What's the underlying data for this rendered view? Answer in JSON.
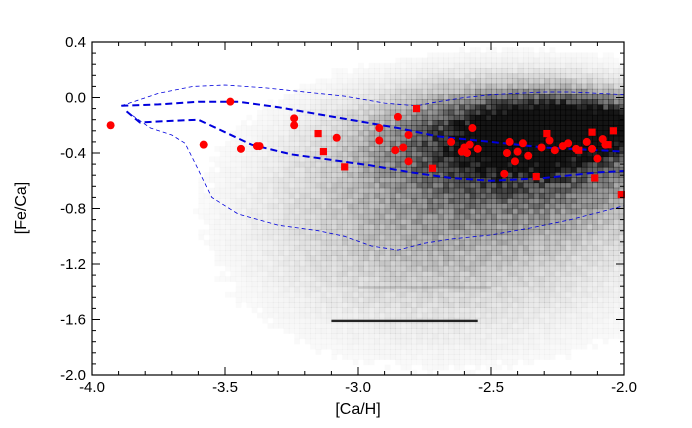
{
  "chart_data": {
    "type": "scatter",
    "title": "",
    "xlabel": "[Ca/H]",
    "ylabel": "[Fe/Ca]",
    "xlim": [
      -4.0,
      -2.0
    ],
    "ylim": [
      -2.0,
      0.4
    ],
    "x_ticks": [
      -4.0,
      -3.5,
      -3.0,
      -2.5,
      -2.0
    ],
    "x_tick_labels": [
      "-4.0",
      "-3.5",
      "-3.0",
      "-2.5",
      "-2.0"
    ],
    "y_ticks": [
      -2.0,
      -1.6,
      -1.2,
      -0.8,
      -0.4,
      0.0,
      0.4
    ],
    "y_tick_labels": [
      "-2.0",
      "-1.6",
      "-1.2",
      "-0.8",
      "-0.4",
      "0.0",
      "0.4"
    ],
    "grid": false,
    "colors": {
      "points": "#ff0000",
      "contours": "#0000dd",
      "density": "#000000",
      "axes": "#000000"
    },
    "series": [
      {
        "marker": "circle",
        "color": "#ff0000",
        "points": [
          [
            -3.93,
            -0.2
          ],
          [
            -3.58,
            -0.34
          ],
          [
            -3.48,
            -0.03
          ],
          [
            -3.44,
            -0.37
          ],
          [
            -3.38,
            -0.35
          ],
          [
            -3.37,
            -0.35
          ],
          [
            -3.24,
            -0.15
          ],
          [
            -3.24,
            -0.2
          ],
          [
            -3.08,
            -0.29
          ],
          [
            -2.92,
            -0.22
          ],
          [
            -2.92,
            -0.31
          ],
          [
            -2.86,
            -0.38
          ],
          [
            -2.85,
            -0.14
          ],
          [
            -2.83,
            -0.36
          ],
          [
            -2.81,
            -0.27
          ],
          [
            -2.81,
            -0.46
          ],
          [
            -2.65,
            -0.32
          ],
          [
            -2.61,
            -0.39
          ],
          [
            -2.6,
            -0.36
          ],
          [
            -2.59,
            -0.4
          ],
          [
            -2.58,
            -0.34
          ],
          [
            -2.57,
            -0.22
          ],
          [
            -2.55,
            -0.37
          ],
          [
            -2.45,
            -0.55
          ],
          [
            -2.44,
            -0.4
          ],
          [
            -2.43,
            -0.32
          ],
          [
            -2.41,
            -0.46
          ],
          [
            -2.4,
            -0.39
          ],
          [
            -2.38,
            -0.33
          ],
          [
            -2.36,
            -0.42
          ],
          [
            -2.31,
            -0.36
          ],
          [
            -2.28,
            -0.31
          ],
          [
            -2.26,
            -0.38
          ],
          [
            -2.23,
            -0.35
          ],
          [
            -2.21,
            -0.33
          ],
          [
            -2.18,
            -0.37
          ],
          [
            -2.14,
            -0.32
          ],
          [
            -2.12,
            -0.37
          ],
          [
            -2.1,
            -0.44
          ],
          [
            -2.08,
            -0.3
          ],
          [
            -2.07,
            -0.34
          ]
        ]
      },
      {
        "marker": "square",
        "color": "#ff0000",
        "points": [
          [
            -3.15,
            -0.26
          ],
          [
            -3.13,
            -0.39
          ],
          [
            -3.05,
            -0.5
          ],
          [
            -2.78,
            -0.08
          ],
          [
            -2.72,
            -0.51
          ],
          [
            -2.33,
            -0.57
          ],
          [
            -2.29,
            -0.26
          ],
          [
            -2.17,
            -0.38
          ],
          [
            -2.12,
            -0.25
          ],
          [
            -2.11,
            -0.58
          ],
          [
            -2.06,
            -0.34
          ],
          [
            -2.04,
            -0.24
          ],
          [
            -2.01,
            -0.7
          ]
        ]
      }
    ],
    "lines": [
      {
        "style": "dashed-thick",
        "color": "#0000dd",
        "points": [
          [
            -3.89,
            -0.06
          ],
          [
            -3.75,
            -0.05
          ],
          [
            -3.6,
            -0.03
          ],
          [
            -3.45,
            -0.03
          ],
          [
            -3.3,
            -0.07
          ],
          [
            -3.15,
            -0.12
          ],
          [
            -3.0,
            -0.17
          ],
          [
            -2.85,
            -0.22
          ],
          [
            -2.7,
            -0.28
          ],
          [
            -2.5,
            -0.32
          ],
          [
            -2.3,
            -0.36
          ],
          [
            -2.1,
            -0.38
          ],
          [
            -2.0,
            -0.39
          ]
        ]
      },
      {
        "style": "dashed-thick",
        "color": "#0000dd",
        "points": [
          [
            -3.87,
            -0.1
          ],
          [
            -3.82,
            -0.18
          ],
          [
            -3.72,
            -0.17
          ],
          [
            -3.6,
            -0.16
          ],
          [
            -3.5,
            -0.25
          ],
          [
            -3.4,
            -0.34
          ],
          [
            -3.25,
            -0.41
          ],
          [
            -3.1,
            -0.45
          ],
          [
            -2.95,
            -0.49
          ],
          [
            -2.8,
            -0.54
          ],
          [
            -2.65,
            -0.58
          ],
          [
            -2.5,
            -0.6
          ],
          [
            -2.3,
            -0.58
          ],
          [
            -2.1,
            -0.54
          ],
          [
            -2.0,
            -0.53
          ]
        ]
      },
      {
        "style": "dashed-thin",
        "color": "#0000dd",
        "points": [
          [
            -3.89,
            -0.06
          ],
          [
            -3.75,
            0.03
          ],
          [
            -3.62,
            0.08
          ],
          [
            -3.5,
            0.09
          ],
          [
            -3.35,
            0.07
          ],
          [
            -3.2,
            0.04
          ],
          [
            -3.05,
            0.01
          ],
          [
            -2.9,
            -0.04
          ],
          [
            -2.78,
            -0.06
          ],
          [
            -2.7,
            -0.03
          ],
          [
            -2.6,
            0.0
          ],
          [
            -2.5,
            0.02
          ],
          [
            -2.4,
            0.03
          ],
          [
            -2.3,
            0.04
          ],
          [
            -2.2,
            0.04
          ],
          [
            -2.1,
            0.03
          ],
          [
            -2.0,
            0.02
          ]
        ]
      },
      {
        "style": "dashed-thin",
        "color": "#0000dd",
        "points": [
          [
            -3.87,
            -0.1
          ],
          [
            -3.78,
            -0.22
          ],
          [
            -3.7,
            -0.27
          ],
          [
            -3.65,
            -0.33
          ],
          [
            -3.6,
            -0.52
          ],
          [
            -3.55,
            -0.72
          ],
          [
            -3.45,
            -0.84
          ],
          [
            -3.3,
            -0.92
          ],
          [
            -3.15,
            -0.96
          ],
          [
            -3.05,
            -1.0
          ],
          [
            -2.95,
            -1.07
          ],
          [
            -2.85,
            -1.1
          ],
          [
            -2.75,
            -1.05
          ],
          [
            -2.65,
            -1.02
          ],
          [
            -2.5,
            -0.99
          ],
          [
            -2.35,
            -0.94
          ],
          [
            -2.2,
            -0.88
          ],
          [
            -2.1,
            -0.83
          ],
          [
            -2.0,
            -0.78
          ]
        ]
      }
    ],
    "density": [
      {
        "x": -2.22,
        "y": -0.2,
        "sx": 0.22,
        "sy": 0.13,
        "w": 0.95
      },
      {
        "x": -2.42,
        "y": -0.3,
        "sx": 0.3,
        "sy": 0.22,
        "w": 0.6
      },
      {
        "x": -2.3,
        "y": -0.5,
        "sx": 0.35,
        "sy": 0.3,
        "w": 0.35
      },
      {
        "x": -2.6,
        "y": -0.7,
        "sx": 0.4,
        "sy": 0.4,
        "w": 0.22
      },
      {
        "x": -2.85,
        "y": -0.95,
        "sx": 0.35,
        "sy": 0.45,
        "w": 0.09
      },
      {
        "x": -2.55,
        "y": -1.35,
        "sx": 0.4,
        "sy": 0.35,
        "w": 0.06
      }
    ],
    "density_streaks": [
      {
        "x1": -3.1,
        "x2": -2.55,
        "y": -1.61,
        "w": 0.85
      },
      {
        "x1": -3.0,
        "x2": -2.5,
        "y": -1.37,
        "w": 0.12
      }
    ]
  }
}
